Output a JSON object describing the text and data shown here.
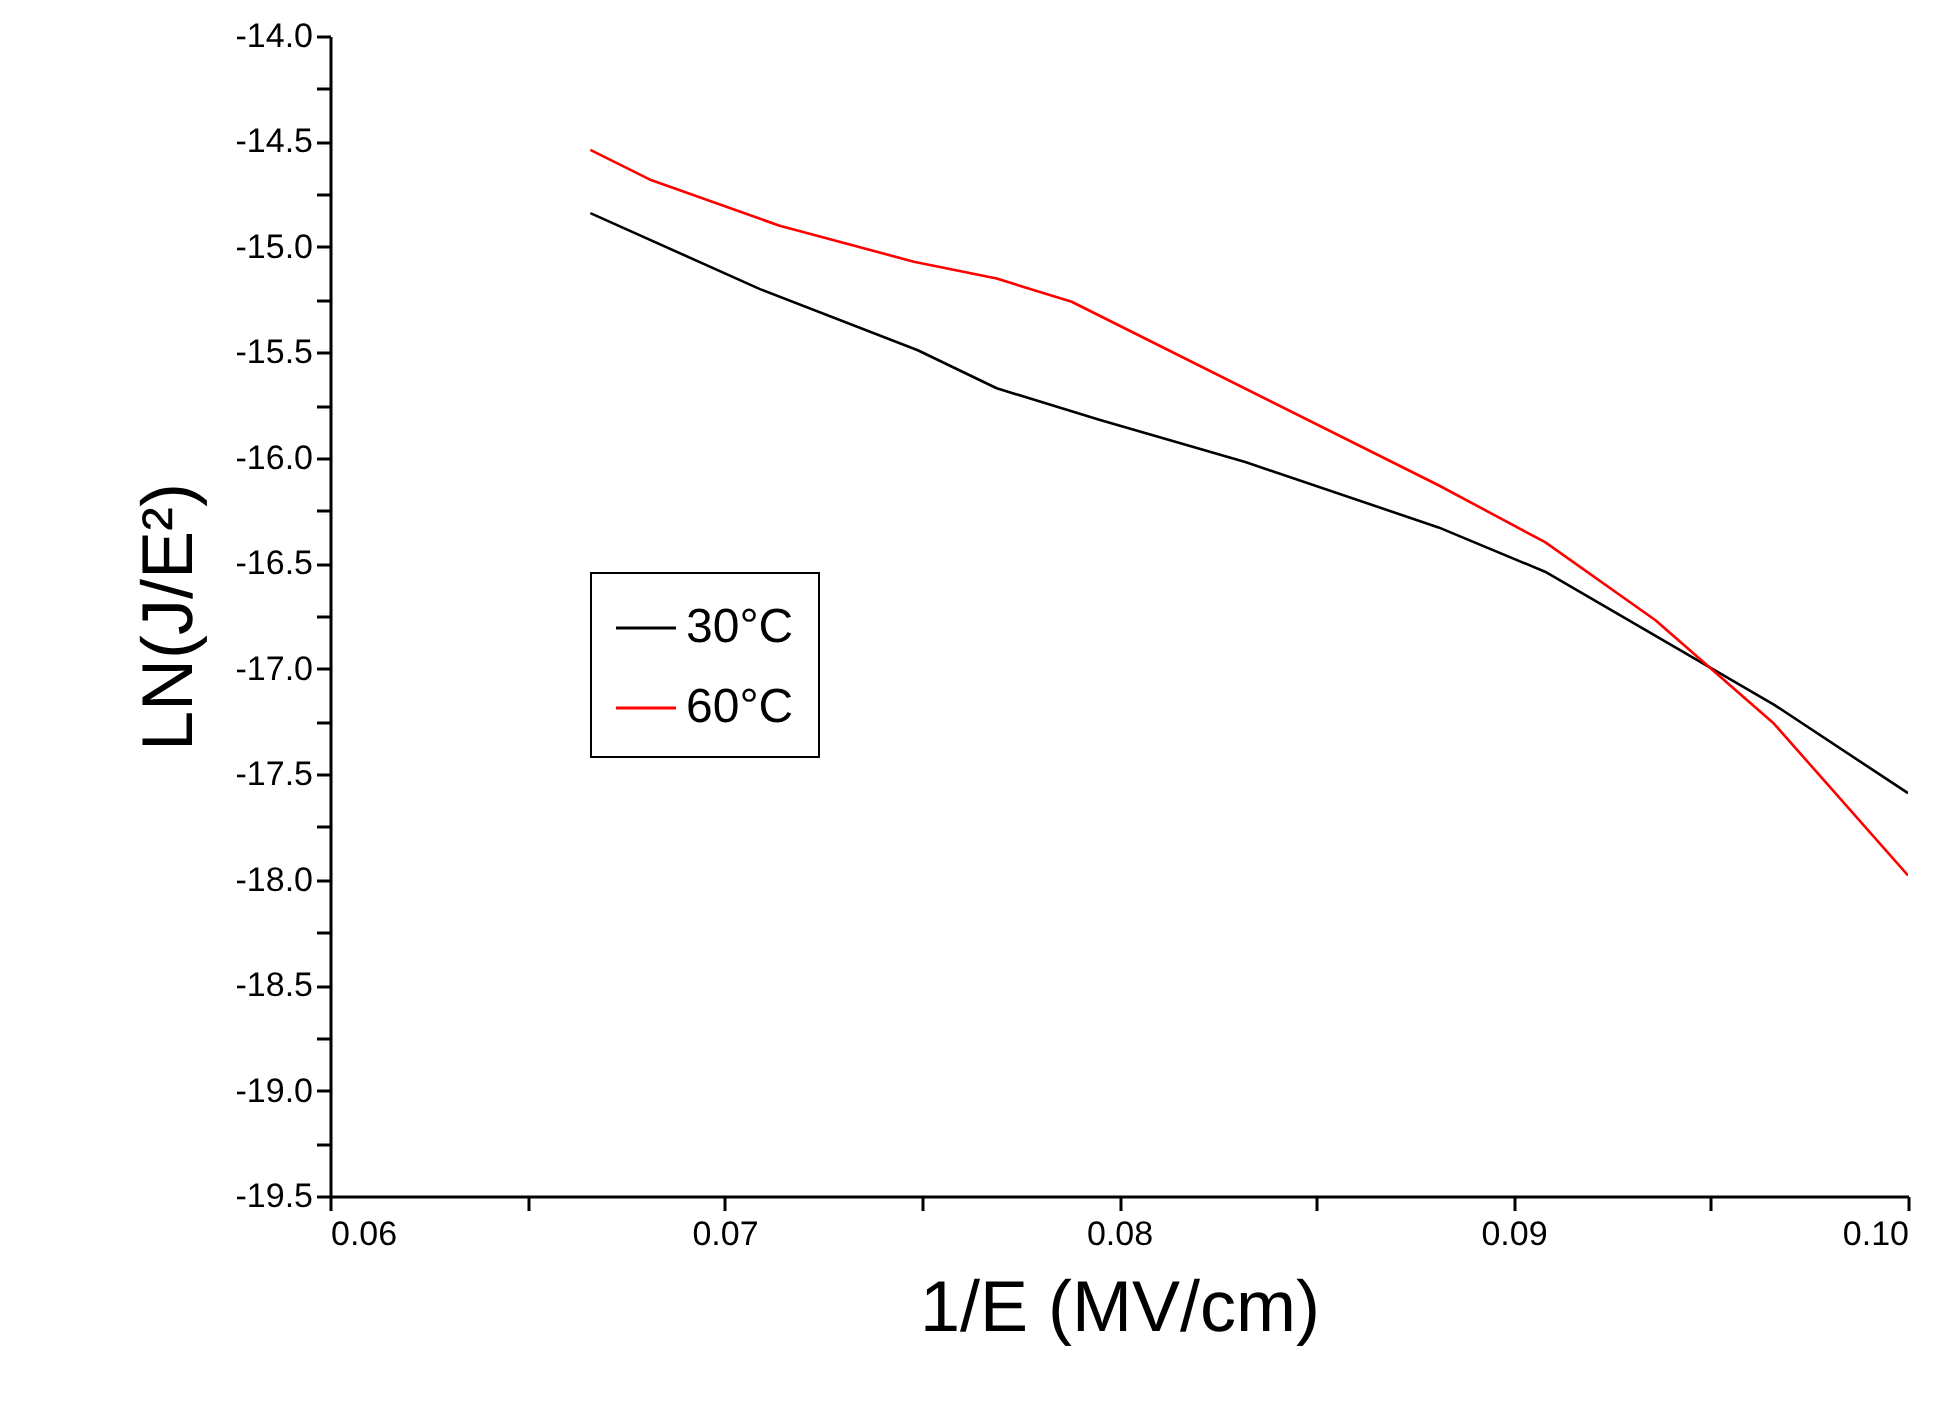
{
  "chart_data": {
    "type": "line",
    "xlabel": "1/E (MV/cm)",
    "ylabel": "LN(J/E²)",
    "xlim": [
      0.06,
      0.1
    ],
    "ylim": [
      -19.5,
      -14.0
    ],
    "xticks": [
      {
        "value": 0.06,
        "label": "0.06"
      },
      {
        "value": 0.065,
        "label": null
      },
      {
        "value": 0.07,
        "label": "0.07"
      },
      {
        "value": 0.075,
        "label": null
      },
      {
        "value": 0.08,
        "label": "0.08"
      },
      {
        "value": 0.085,
        "label": null
      },
      {
        "value": 0.09,
        "label": "0.09"
      },
      {
        "value": 0.095,
        "label": null
      },
      {
        "value": 0.1,
        "label": "0.10"
      }
    ],
    "yticks": [
      {
        "value": -19.5,
        "label": "-19.5"
      },
      {
        "value": -19.25,
        "label": null
      },
      {
        "value": -19.0,
        "label": "-19.0"
      },
      {
        "value": -18.75,
        "label": null
      },
      {
        "value": -18.5,
        "label": "-18.5"
      },
      {
        "value": -18.25,
        "label": null
      },
      {
        "value": -18.0,
        "label": "-18.0"
      },
      {
        "value": -17.75,
        "label": null
      },
      {
        "value": -17.5,
        "label": "-17.5"
      },
      {
        "value": -17.25,
        "label": null
      },
      {
        "value": -17.0,
        "label": "-17.0"
      },
      {
        "value": -16.75,
        "label": null
      },
      {
        "value": -16.5,
        "label": "-16.5"
      },
      {
        "value": -16.25,
        "label": null
      },
      {
        "value": -16.0,
        "label": "-16.0"
      },
      {
        "value": -15.75,
        "label": null
      },
      {
        "value": -15.5,
        "label": "-15.5"
      },
      {
        "value": -15.25,
        "label": null
      },
      {
        "value": -15.0,
        "label": "-15.0"
      },
      {
        "value": -14.75,
        "label": null
      },
      {
        "value": -14.5,
        "label": "-14.5"
      },
      {
        "value": -14.25,
        "label": null
      },
      {
        "value": -14.0,
        "label": "-14.0"
      }
    ],
    "grid": false,
    "legend": "left",
    "marker": "none",
    "line_style": "solid",
    "series": [
      {
        "name": "30°C",
        "color": "#000000",
        "x": [
          0.0666,
          0.0709,
          0.0749,
          0.0769,
          0.0795,
          0.0832,
          0.0881,
          0.0908,
          0.0966,
          0.1
        ],
        "values": [
          -14.84,
          -15.2,
          -15.49,
          -15.67,
          -15.82,
          -16.02,
          -16.33,
          -16.54,
          -17.17,
          -17.59
        ]
      },
      {
        "name": "60°C",
        "color": "#ff0000",
        "x": [
          0.0666,
          0.0681,
          0.0714,
          0.0748,
          0.0769,
          0.0788,
          0.0881,
          0.0908,
          0.0936,
          0.0966,
          0.1
        ],
        "values": [
          -14.54,
          -14.68,
          -14.9,
          -15.07,
          -15.15,
          -15.26,
          -16.13,
          -16.4,
          -16.77,
          -17.26,
          -17.98
        ]
      }
    ]
  }
}
